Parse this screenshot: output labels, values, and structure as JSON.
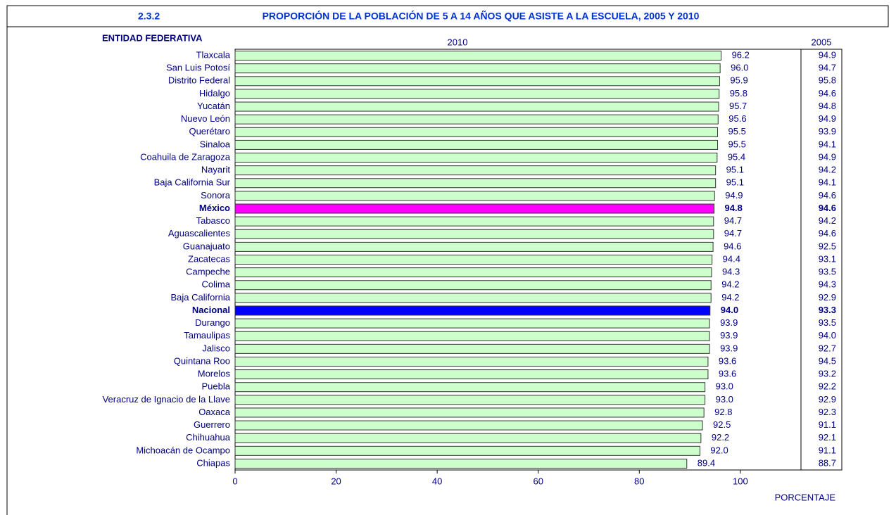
{
  "chart_data": {
    "type": "bar",
    "orientation": "horizontal",
    "number": "2.3.2",
    "title": "PROPORCIÓN DE LA POBLACIÓN DE 5 A 14 AÑOS QUE ASISTE A LA ESCUELA, 2005 Y 2010",
    "category_label": "ENTIDAD FEDERATIVA",
    "x_label": "PORCENTAJE",
    "categories": [
      "Tlaxcala",
      "San Luis Potosí",
      "Distrito Federal",
      "Hidalgo",
      "Yucatán",
      "Nuevo León",
      "Querétaro",
      "Sinaloa",
      "Coahuila de Zaragoza",
      "Nayarit",
      "Baja California Sur",
      "Sonora",
      "México",
      "Tabasco",
      "Aguascalientes",
      "Guanajuato",
      "Zacatecas",
      "Campeche",
      "Colima",
      "Baja California",
      "Nacional",
      "Durango",
      "Tamaulipas",
      "Jalisco",
      "Quintana Roo",
      "Morelos",
      "Puebla",
      "Veracruz de Ignacio de la Llave",
      "Oaxaca",
      "Guerrero",
      "Chihuahua",
      "Michoacán de Ocampo",
      "Chiapas"
    ],
    "series": [
      {
        "name": "2010",
        "color": "#ccffcc",
        "colors": [
          "#ccffcc",
          "#ccffcc",
          "#ccffcc",
          "#ccffcc",
          "#ccffcc",
          "#ccffcc",
          "#ccffcc",
          "#ccffcc",
          "#ccffcc",
          "#ccffcc",
          "#ccffcc",
          "#ccffcc",
          "#ff00ff",
          "#ccffcc",
          "#ccffcc",
          "#ccffcc",
          "#ccffcc",
          "#ccffcc",
          "#ccffcc",
          "#ccffcc",
          "#0000ff",
          "#ccffcc",
          "#ccffcc",
          "#ccffcc",
          "#ccffcc",
          "#ccffcc",
          "#ccffcc",
          "#ccffcc",
          "#ccffcc",
          "#ccffcc",
          "#ccffcc",
          "#ccffcc",
          "#ccffcc"
        ],
        "values": [
          96.2,
          96,
          95.9,
          95.8,
          95.7,
          95.6,
          95.5,
          95.5,
          95.4,
          95.1,
          95.1,
          94.9,
          94.8,
          94.7,
          94.7,
          94.6,
          94.4,
          94.3,
          94.2,
          94.2,
          94,
          93.9,
          93.9,
          93.9,
          93.6,
          93.6,
          93,
          93,
          92.8,
          92.5,
          92.2,
          92,
          89.4
        ],
        "value_labels": [
          "96.2",
          "96.0",
          "95.9",
          "95.8",
          "95.7",
          "95.6",
          "95.5",
          "95.5",
          "95.4",
          "95.1",
          "95.1",
          "94.9",
          "94.8",
          "94.7",
          "94.7",
          "94.6",
          "94.4",
          "94.3",
          "94.2",
          "94.2",
          "94.0",
          "93.9",
          "93.9",
          "93.9",
          "93.6",
          "93.6",
          "93.0",
          "93.0",
          "92.8",
          "92.5",
          "92.2",
          "92.0",
          "89.4"
        ]
      },
      {
        "name": "2005",
        "values": [
          94.9,
          94.7,
          95.8,
          94.6,
          94.8,
          94.9,
          93.9,
          94.1,
          94.9,
          94.2,
          94.1,
          94.6,
          94.6,
          94.2,
          94.6,
          92.5,
          93.1,
          93.5,
          94.3,
          92.9,
          93.3,
          93.5,
          94,
          92.7,
          94.5,
          93.2,
          92.2,
          92.9,
          92.3,
          91.1,
          92.1,
          91.1,
          88.7
        ],
        "value_labels": [
          "94.9",
          "94.7",
          "95.8",
          "94.6",
          "94.8",
          "94.9",
          "93.9",
          "94.1",
          "94.9",
          "94.2",
          "94.1",
          "94.6",
          "94.6",
          "94.2",
          "94.6",
          "92.5",
          "93.1",
          "93.5",
          "94.3",
          "92.9",
          "93.3",
          "93.5",
          "94.0",
          "92.7",
          "94.5",
          "93.2",
          "92.2",
          "92.9",
          "92.3",
          "91.1",
          "92.1",
          "91.1",
          "88.7"
        ]
      }
    ],
    "xlim": [
      0,
      112
    ],
    "xticks": [
      0,
      20,
      40,
      60,
      80,
      100
    ]
  }
}
